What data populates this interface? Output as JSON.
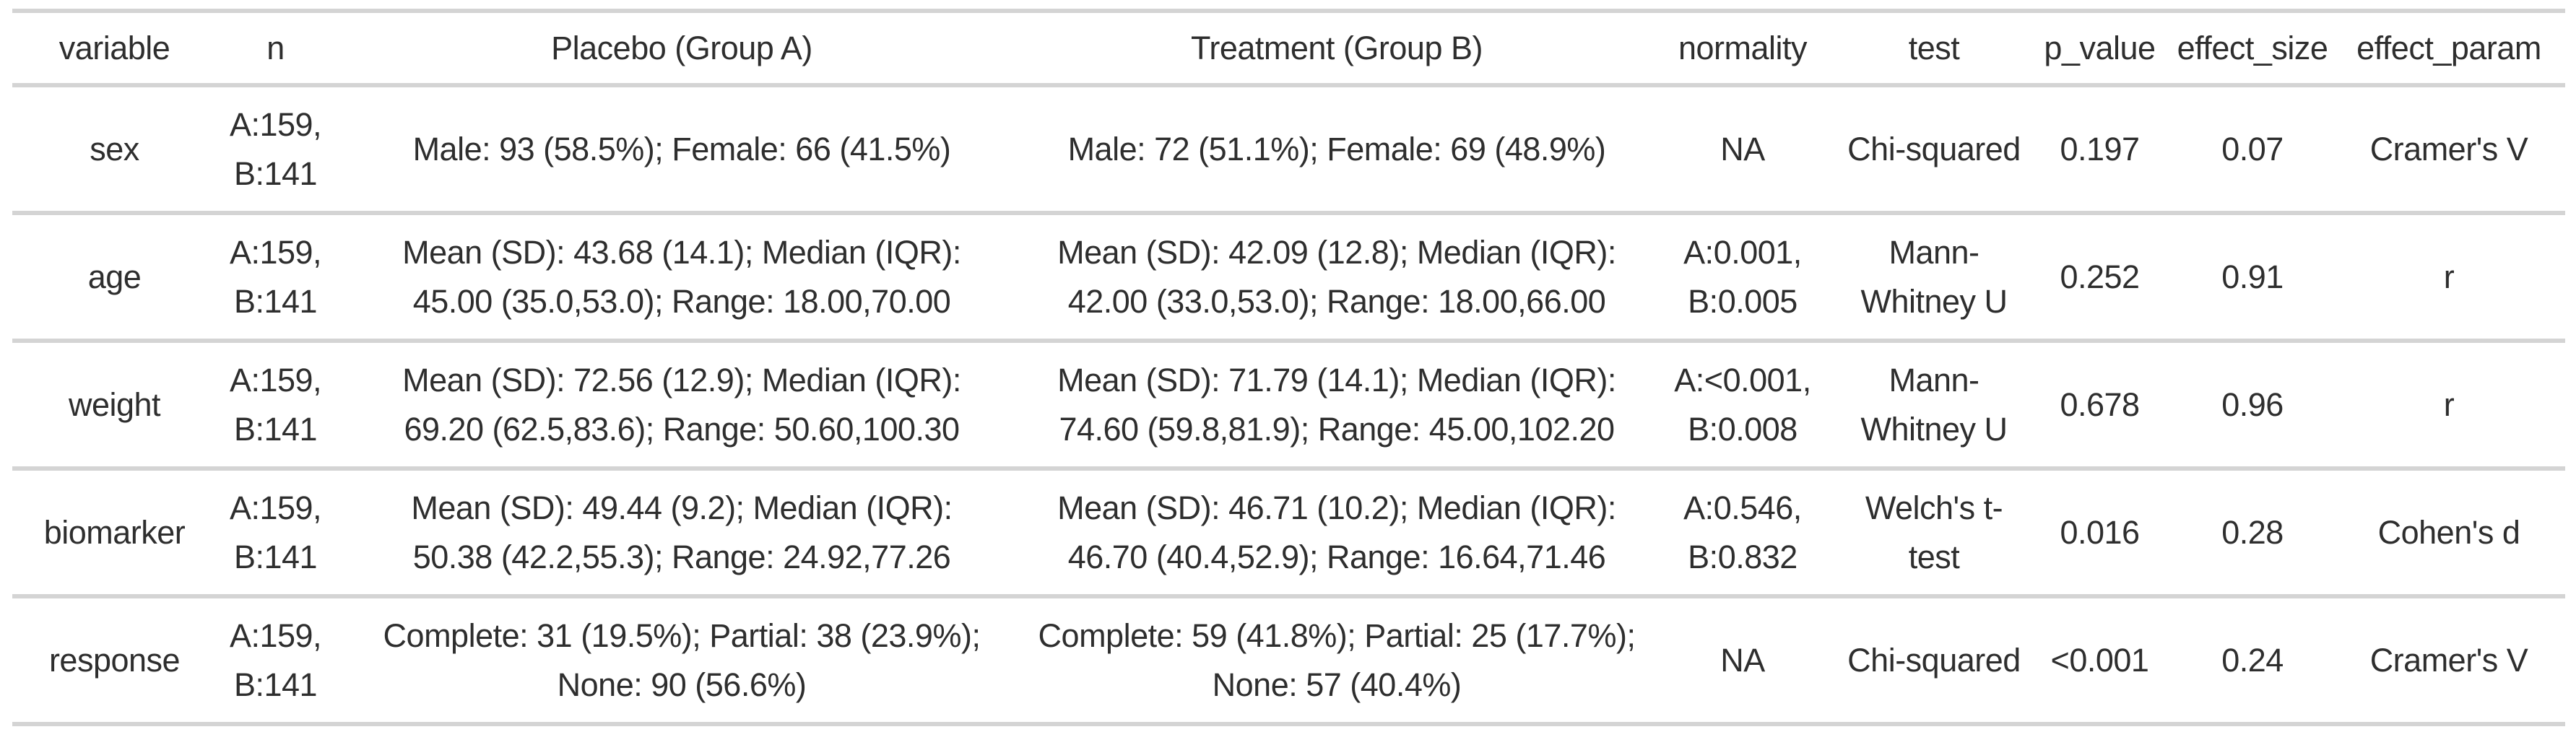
{
  "chart_data": {
    "type": "table",
    "columns": [
      "variable",
      "n",
      "Placebo (Group A)",
      "Treatment (Group B)",
      "normality",
      "test",
      "p_value",
      "effect_size",
      "effect_param"
    ],
    "rows": [
      [
        "sex",
        "A:159,\nB:141",
        "Male: 93 (58.5%); Female: 66 (41.5%)",
        "Male: 72 (51.1%); Female: 69 (48.9%)",
        "NA",
        "Chi-squared",
        "0.197",
        "0.07",
        "Cramer's V"
      ],
      [
        "age",
        "A:159,\nB:141",
        "Mean (SD): 43.68 (14.1); Median (IQR):\n45.00 (35.0,53.0); Range: 18.00,70.00",
        "Mean (SD): 42.09 (12.8); Median (IQR):\n42.00 (33.0,53.0); Range: 18.00,66.00",
        "A:0.001,\nB:0.005",
        "Mann-\nWhitney U",
        "0.252",
        "0.91",
        "r"
      ],
      [
        "weight",
        "A:159,\nB:141",
        "Mean (SD): 72.56 (12.9); Median (IQR):\n69.20 (62.5,83.6); Range: 50.60,100.30",
        "Mean (SD): 71.79 (14.1); Median (IQR):\n74.60 (59.8,81.9); Range: 45.00,102.20",
        "A:<0.001,\nB:0.008",
        "Mann-\nWhitney U",
        "0.678",
        "0.96",
        "r"
      ],
      [
        "biomarker",
        "A:159,\nB:141",
        "Mean (SD): 49.44 (9.2); Median (IQR):\n50.38 (42.2,55.3); Range: 24.92,77.26",
        "Mean (SD): 46.71 (10.2); Median (IQR):\n46.70 (40.4,52.9); Range: 16.64,71.46",
        "A:0.546,\nB:0.832",
        "Welch's t-\ntest",
        "0.016",
        "0.28",
        "Cohen's d"
      ],
      [
        "response",
        "A:159,\nB:141",
        "Complete: 31 (19.5%); Partial: 38 (23.9%);\nNone: 90 (56.6%)",
        "Complete: 59 (41.8%); Partial: 25 (17.7%);\nNone: 57 (40.4%)",
        "NA",
        "Chi-squared",
        "<0.001",
        "0.24",
        "Cramer's V"
      ]
    ],
    "title": "",
    "legend": "none",
    "grid": "horizontal-rules-only"
  },
  "colors": {
    "text": "#2e2e2e",
    "border": "#d4d4d4",
    "background": "#ffffff"
  }
}
